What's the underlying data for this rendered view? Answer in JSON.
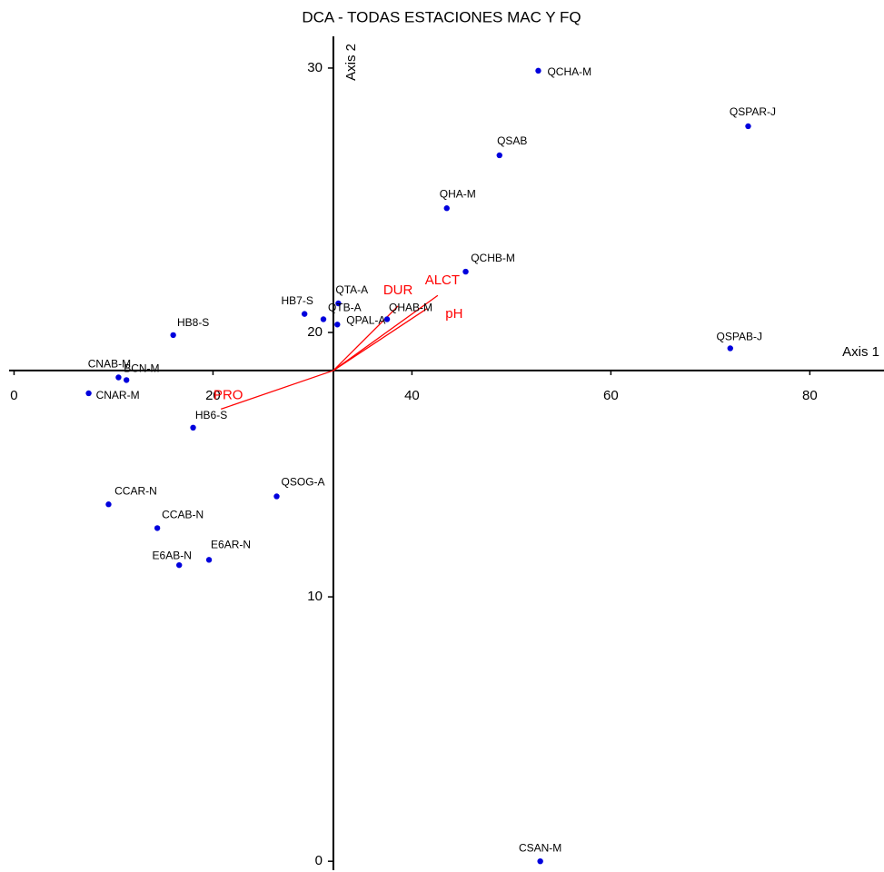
{
  "chart_data": {
    "type": "scatter",
    "title": "DCA - TODAS ESTACIONES MAC Y FQ",
    "x_label": "Axis 1",
    "y_label": "Axis 2",
    "xlim": [
      -0.5,
      87
    ],
    "ylim": [
      -0.2,
      31.2
    ],
    "xticks": [
      0,
      20,
      40,
      60,
      80
    ],
    "yticks": [
      0,
      10,
      20,
      30
    ],
    "x_axis_at": 18.56,
    "y_axis_at": 32.1,
    "color": "#0000dd",
    "labels": [
      "QCHA-M",
      "QSPAR-J",
      "QSAB",
      "QHA-M",
      "QCHB-M",
      "QTA-A",
      "HB7-S",
      "QTB-A",
      "QPAL-A",
      "QHAB-M",
      "HB8-S",
      "QSPAB-J",
      "CNAB-M",
      "BCN-M",
      "CNAR-M",
      "HB6-S",
      "QSOG-A",
      "CCAR-N",
      "CCAB-N",
      "E6AR-N",
      "E6AB-N",
      "CSAN-M"
    ],
    "x": [
      52.7,
      73.8,
      48.8,
      43.5,
      45.4,
      32.6,
      29.2,
      31.1,
      32.5,
      37.5,
      16.0,
      72.0,
      10.5,
      11.3,
      7.5,
      18.0,
      26.4,
      9.5,
      14.4,
      19.6,
      16.6,
      52.9
    ],
    "values": [
      29.9,
      27.8,
      26.7,
      24.7,
      22.3,
      21.1,
      20.7,
      20.5,
      20.3,
      20.5,
      19.9,
      19.4,
      18.3,
      18.2,
      17.7,
      16.4,
      13.8,
      13.5,
      12.6,
      11.4,
      11.2,
      0.0
    ],
    "vectors": {
      "color": "#ff0000",
      "names": [
        "PRO",
        "DUR",
        "ALCT",
        "pH"
      ],
      "x": [
        20.8,
        38.6,
        42.6,
        41.5
      ],
      "y": [
        17.1,
        21.0,
        21.4,
        20.9
      ]
    }
  }
}
